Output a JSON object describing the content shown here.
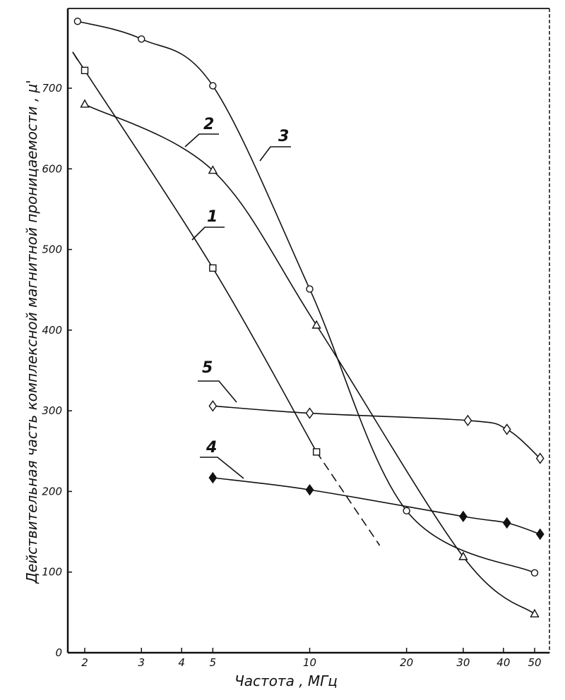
{
  "chart_data": {
    "type": "line",
    "title": "",
    "xlabel": "Частота , МГц",
    "ylabel": "Действительная часть комплексной магнитной проницаемости , μ'",
    "x_scale": "log",
    "xlim": [
      1.8,
      55
    ],
    "ylim": [
      0,
      800
    ],
    "x_ticks": [
      2,
      3,
      4,
      5,
      10,
      20,
      30,
      40,
      50
    ],
    "x_tick_labels": [
      "2",
      "3",
      "4",
      "5",
      "10",
      "20",
      "30",
      "40",
      "50"
    ],
    "y_ticks": [
      0,
      100,
      200,
      300,
      400,
      500,
      600,
      700
    ],
    "y_tick_labels": [
      "0",
      "100",
      "200",
      "300",
      "400",
      "500",
      "600",
      "700"
    ],
    "grid": false,
    "legend": "none",
    "series": [
      {
        "name": "1",
        "marker": "square",
        "points": [
          [
            1.9,
            735
          ],
          [
            2,
            722
          ],
          [
            5,
            477
          ],
          [
            10.5,
            249
          ]
        ],
        "extension_dashed": [
          [
            10.5,
            249
          ],
          [
            16.5,
            133
          ]
        ]
      },
      {
        "name": "2",
        "marker": "triangle",
        "points": [
          [
            2,
            680
          ],
          [
            5,
            598
          ],
          [
            10.5,
            406
          ],
          [
            30,
            119
          ],
          [
            50,
            48
          ]
        ]
      },
      {
        "name": "3",
        "marker": "circle",
        "points": [
          [
            1.9,
            783
          ],
          [
            3,
            761
          ],
          [
            5,
            703
          ],
          [
            10,
            451
          ],
          [
            20,
            176
          ],
          [
            50,
            99
          ]
        ]
      },
      {
        "name": "4",
        "marker": "diamond-filled",
        "points": [
          [
            5,
            217
          ],
          [
            10,
            202
          ],
          [
            30,
            169
          ],
          [
            41,
            161
          ],
          [
            52,
            147
          ]
        ]
      },
      {
        "name": "5",
        "marker": "diamond-open",
        "points": [
          [
            5,
            306
          ],
          [
            10,
            297
          ],
          [
            31,
            288
          ],
          [
            41,
            277
          ],
          [
            52,
            241
          ]
        ]
      }
    ]
  }
}
